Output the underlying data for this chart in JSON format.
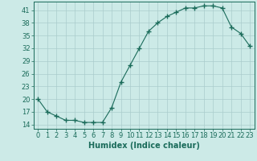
{
  "x": [
    0,
    1,
    2,
    3,
    4,
    5,
    6,
    7,
    8,
    9,
    10,
    11,
    12,
    13,
    14,
    15,
    16,
    17,
    18,
    19,
    20,
    21,
    22,
    23
  ],
  "y": [
    20,
    17,
    16,
    15,
    15,
    14.5,
    14.5,
    14.5,
    18,
    24,
    28,
    32,
    36,
    38,
    39.5,
    40.5,
    41.5,
    41.5,
    42,
    42,
    41.5,
    37,
    35.5,
    32.5
  ],
  "line_color": "#1a6b5a",
  "marker": "+",
  "marker_size": 4,
  "bg_color": "#cceae7",
  "grid_color": "#aacccc",
  "xlabel": "Humidex (Indice chaleur)",
  "xlim": [
    -0.5,
    23.5
  ],
  "ylim": [
    13,
    43
  ],
  "yticks": [
    14,
    17,
    20,
    23,
    26,
    29,
    32,
    35,
    38,
    41
  ],
  "xticks": [
    0,
    1,
    2,
    3,
    4,
    5,
    6,
    7,
    8,
    9,
    10,
    11,
    12,
    13,
    14,
    15,
    16,
    17,
    18,
    19,
    20,
    21,
    22,
    23
  ],
  "tick_fontsize": 6,
  "xlabel_fontsize": 7,
  "label_color": "#1a6b5a"
}
